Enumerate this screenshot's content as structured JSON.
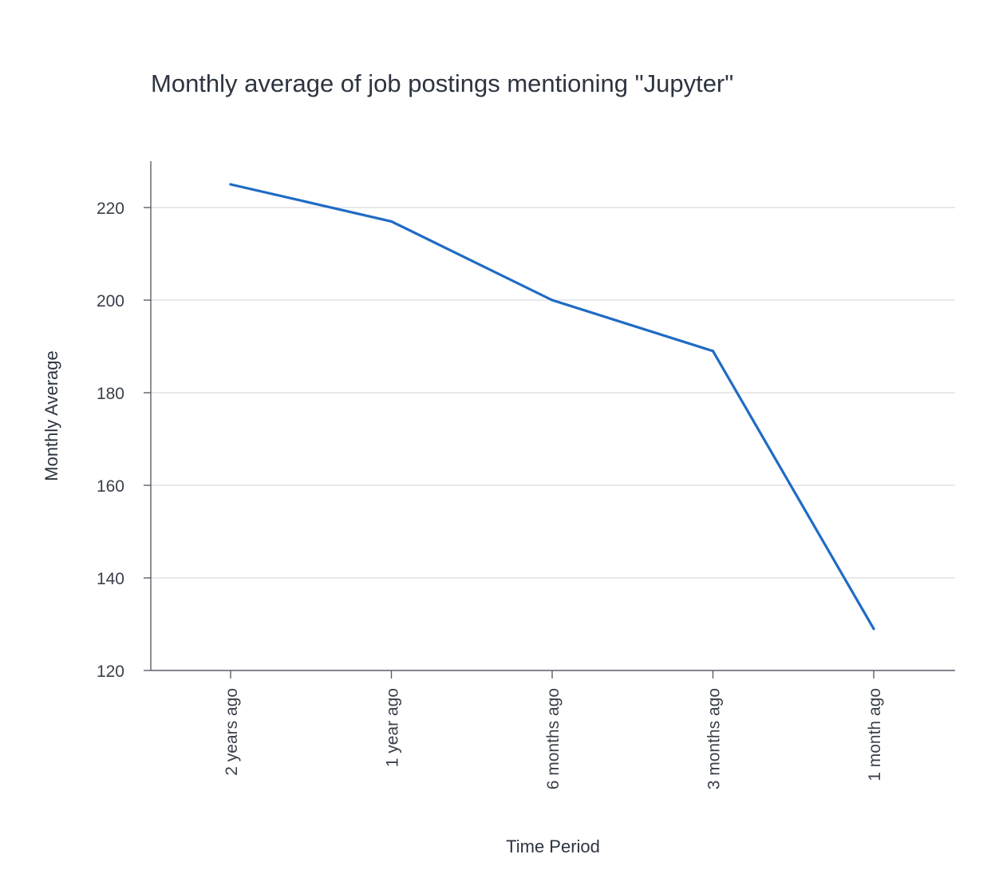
{
  "chart_data": {
    "type": "line",
    "title": "Monthly average of job postings mentioning \"Jupyter\"",
    "xlabel": "Time Period",
    "ylabel": "Monthly Average",
    "categories": [
      "2 years ago",
      "1 year ago",
      "6 months ago",
      "3 months ago",
      "1 month ago"
    ],
    "series": [
      {
        "values": [
          225,
          217,
          200,
          189,
          129
        ]
      }
    ],
    "ylim": [
      120,
      230
    ],
    "yticks": [
      120,
      140,
      160,
      180,
      200,
      220
    ],
    "grid": "horizontal",
    "legend": "none",
    "colors": {
      "line": "#1f6bc4"
    }
  }
}
